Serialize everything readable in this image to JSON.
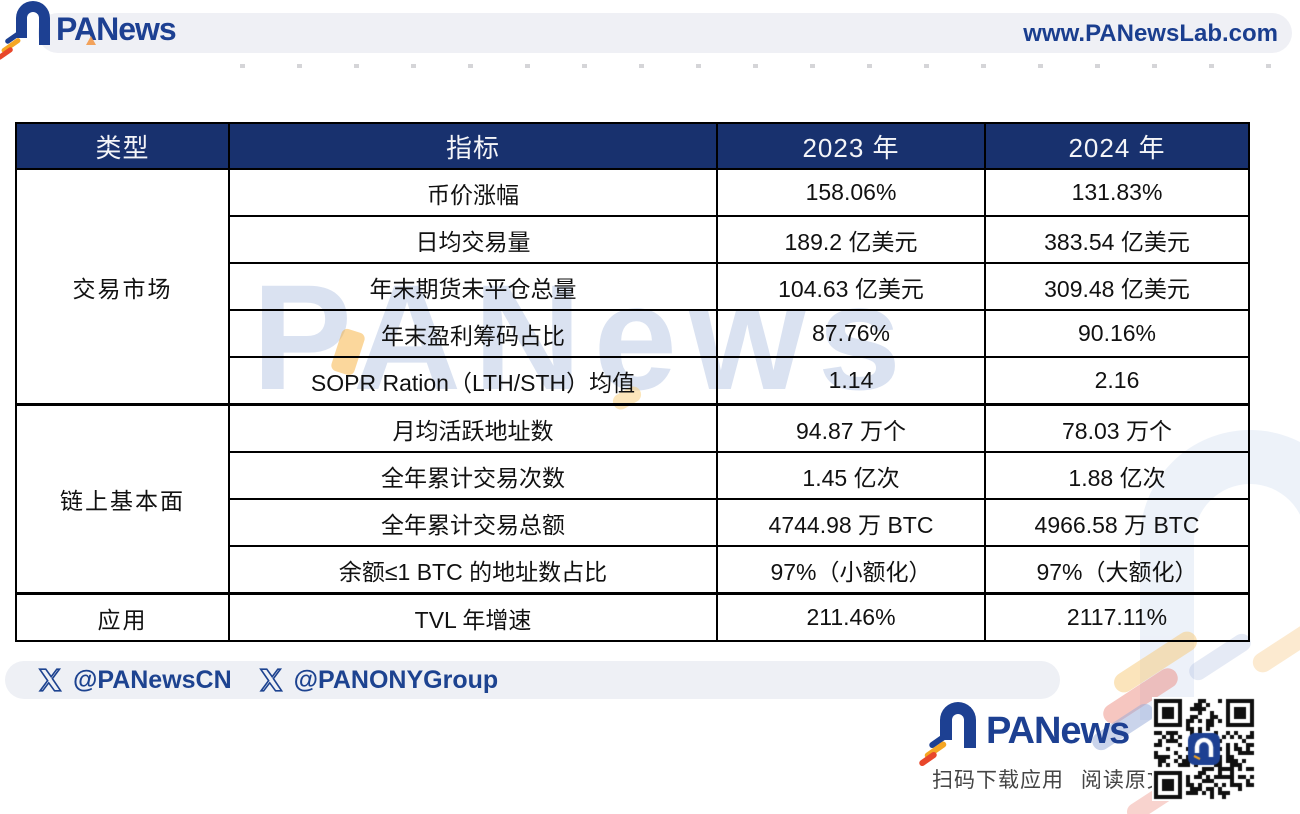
{
  "header": {
    "brand": "PANews",
    "website": "www.PANewsLab.com"
  },
  "table": {
    "columns": [
      "类型",
      "指标",
      "2023 年",
      "2024 年"
    ],
    "groups": [
      {
        "type": "交易市场",
        "rows": [
          {
            "indicator": "币价涨幅",
            "y2023": "158.06%",
            "y2024": "131.83%"
          },
          {
            "indicator": "日均交易量",
            "y2023": "189.2 亿美元",
            "y2024": "383.54 亿美元"
          },
          {
            "indicator": "年末期货未平仓总量",
            "y2023": "104.63 亿美元",
            "y2024": "309.48 亿美元"
          },
          {
            "indicator": "年末盈利筹码占比",
            "y2023": "87.76%",
            "y2024": "90.16%"
          },
          {
            "indicator": "SOPR Ration（LTH/STH）均值",
            "y2023": "1.14",
            "y2024": "2.16"
          }
        ]
      },
      {
        "type": "链上基本面",
        "rows": [
          {
            "indicator": "月均活跃地址数",
            "y2023": "94.87 万个",
            "y2024": "78.03 万个"
          },
          {
            "indicator": "全年累计交易次数",
            "y2023": "1.45 亿次",
            "y2024": "1.88 亿次"
          },
          {
            "indicator": "全年累计交易总额",
            "y2023": "4744.98 万 BTC",
            "y2024": "4966.58 万 BTC"
          },
          {
            "indicator": "余额≤1 BTC 的地址数占比",
            "y2023": "97%（小额化）",
            "y2024": "97%（大额化）"
          }
        ]
      },
      {
        "type": "应用",
        "rows": [
          {
            "indicator": "TVL 年增速",
            "y2023": "211.46%",
            "y2024": "2117.11%"
          }
        ]
      }
    ]
  },
  "watermark_text": "PANews",
  "footer": {
    "social_handles": [
      "@PANewsCN",
      "@PANONYGroup"
    ],
    "brand": "PANews",
    "caption": "扫码下载应用 阅读原文"
  },
  "icons": {
    "x_icon": "x-twitter-logo",
    "magnet_icon": "panews-magnet-logo",
    "qr_code": "panews-app-qr"
  },
  "colors": {
    "brand_blue": "#1d4092",
    "header_navy": "#18316e",
    "value_2023_gray": "#9b9b9b",
    "value_2024_black": "#111111",
    "band_gray": "#eff0f5",
    "accent_orange": "#f5a623",
    "accent_red": "#e8472b",
    "watermark_blue": "#bccbe6"
  }
}
